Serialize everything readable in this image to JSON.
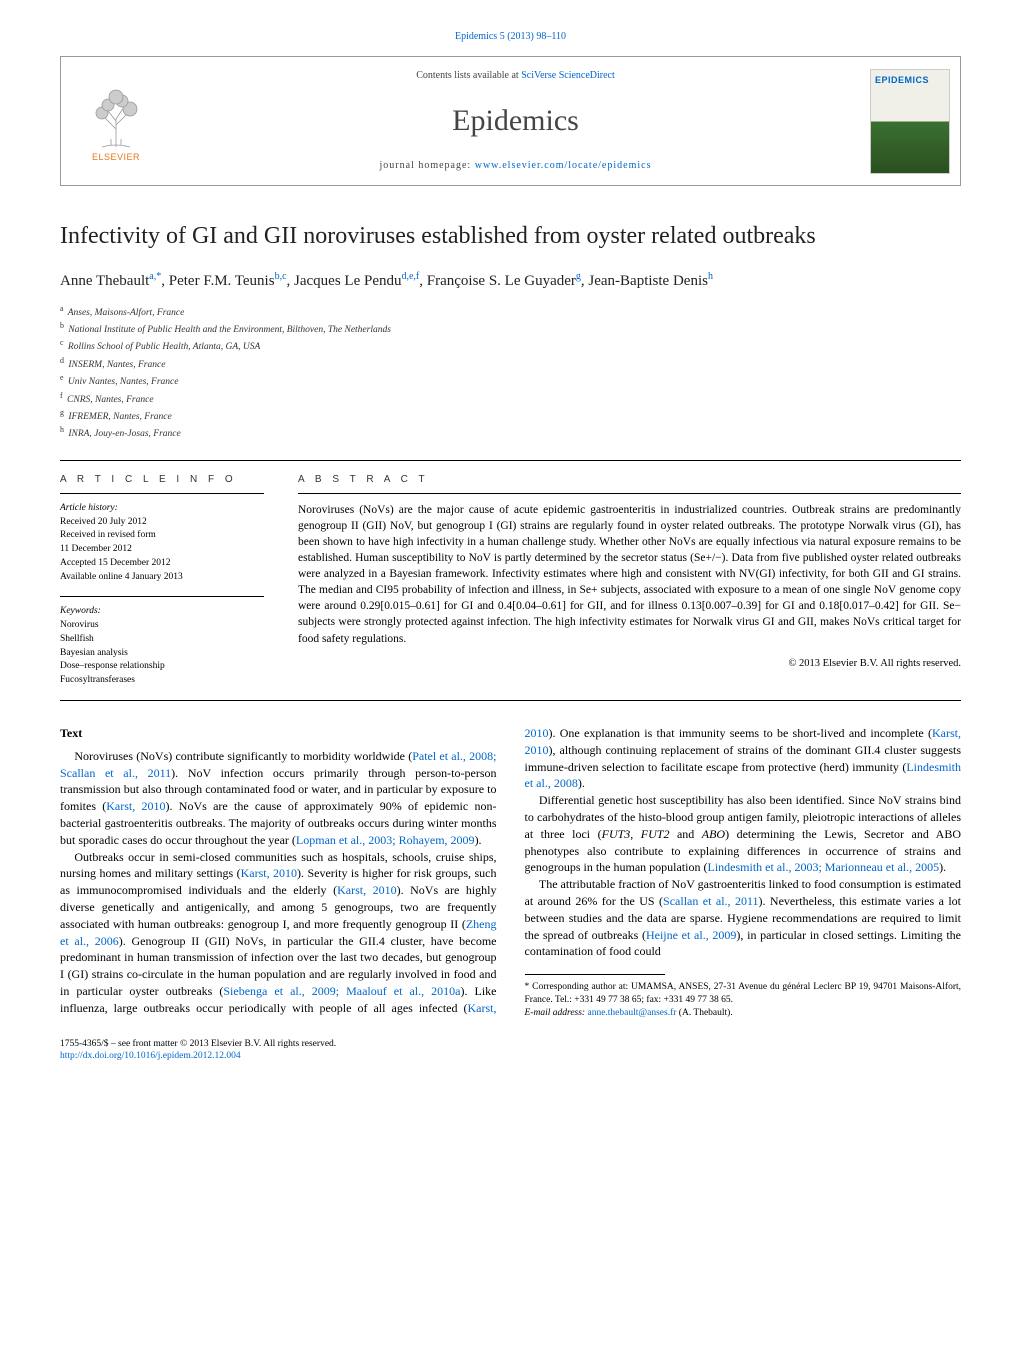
{
  "journal_ref": "Epidemics 5 (2013) 98–110",
  "header": {
    "contents_prefix": "Contents lists available at ",
    "contents_link": "SciVerse ScienceDirect",
    "journal_name": "Epidemics",
    "homepage_prefix": "journal homepage: ",
    "homepage_url": "www.elsevier.com/locate/epidemics",
    "elsevier_label": "ELSEVIER",
    "cover_title": "EPIDEMICS"
  },
  "title": "Infectivity of GI and GII noroviruses established from oyster related outbreaks",
  "authors_html": "Anne Thebault<sup>a,*</sup>, Peter F.M. Teunis<sup>b,c</sup>, Jacques Le Pendu<sup>d,e,f</sup>, Françoise S. Le Guyader<sup>g</sup>, Jean-Baptiste Denis<sup>h</sup>",
  "affiliations": [
    {
      "sup": "a",
      "text": "Anses, Maisons-Alfort, France"
    },
    {
      "sup": "b",
      "text": "National Institute of Public Health and the Environment, Bilthoven, The Netherlands"
    },
    {
      "sup": "c",
      "text": "Rollins School of Public Health, Atlanta, GA, USA"
    },
    {
      "sup": "d",
      "text": "INSERM, Nantes, France"
    },
    {
      "sup": "e",
      "text": "Univ Nantes, Nantes, France"
    },
    {
      "sup": "f",
      "text": "CNRS, Nantes, France"
    },
    {
      "sup": "g",
      "text": "IFREMER, Nantes, France"
    },
    {
      "sup": "h",
      "text": "INRA, Jouy-en-Josas, France"
    }
  ],
  "info": {
    "heading": "a r t i c l e   i n f o",
    "history_label": "Article history:",
    "history": [
      "Received 20 July 2012",
      "Received in revised form",
      "11 December 2012",
      "Accepted 15 December 2012",
      "Available online 4 January 2013"
    ],
    "keywords_label": "Keywords:",
    "keywords": [
      "Norovirus",
      "Shellfish",
      "Bayesian analysis",
      "Dose–response relationship",
      "Fucosyltransferases"
    ]
  },
  "abstract": {
    "heading": "a b s t r a c t",
    "text": "Noroviruses (NoVs) are the major cause of acute epidemic gastroenteritis in industrialized countries. Outbreak strains are predominantly genogroup II (GII) NoV, but genogroup I (GI) strains are regularly found in oyster related outbreaks. The prototype Norwalk virus (GI), has been shown to have high infectivity in a human challenge study. Whether other NoVs are equally infectious via natural exposure remains to be established. Human susceptibility to NoV is partly determined by the secretor status (Se+/−). Data from five published oyster related outbreaks were analyzed in a Bayesian framework. Infectivity estimates where high and consistent with NV(GI) infectivity, for both GII and GI strains. The median and CI95 probability of infection and illness, in Se+ subjects, associated with exposure to a mean of one single NoV genome copy were around 0.29[0.015–0.61] for GI and 0.4[0.04–0.61] for GII, and for illness 0.13[0.007–0.39] for GI and 0.18[0.017–0.42] for GII. Se− subjects were strongly protected against infection. The high infectivity estimates for Norwalk virus GI and GII, makes NoVs critical target for food safety regulations.",
    "copyright": "© 2013 Elsevier B.V. All rights reserved."
  },
  "section_head": "Text",
  "paragraphs": [
    "Noroviruses (NoVs) contribute significantly to morbidity worldwide (<span class=\"cite\">Patel et al., 2008; Scallan et al., 2011</span>). NoV infection occurs primarily through person-to-person transmission but also through contaminated food or water, and in particular by exposure to fomites (<span class=\"cite\">Karst, 2010</span>). NoVs are the cause of approximately 90% of epidemic non-bacterial gastroenteritis outbreaks. The majority of outbreaks occurs during winter months but sporadic cases do occur throughout the year (<span class=\"cite\">Lopman et al., 2003; Rohayem, 2009</span>).",
    "Outbreaks occur in semi-closed communities such as hospitals, schools, cruise ships, nursing homes and military settings (<span class=\"cite\">Karst, 2010</span>). Severity is higher for risk groups, such as immunocompromised individuals and the elderly (<span class=\"cite\">Karst, 2010</span>). NoVs are highly diverse genetically and antigenically, and among 5 genogroups, two are frequently associated with human outbreaks: genogroup I, and more frequently genogroup II (<span class=\"cite\">Zheng et al., 2006</span>). Genogroup II (GII) NoVs, in particular the GII.4 cluster, have become predominant in human transmission of infection over the last two decades, but genogroup I (GI) strains co-circulate in the human population and are regularly involved in food and in particular oyster outbreaks (<span class=\"cite\">Siebenga et al., 2009; Maalouf et al., 2010a</span>). Like influenza, large outbreaks occur periodically with people of all ages infected (<span class=\"cite\">Karst, 2010</span>). One explanation is that immunity seems to be short-lived and incomplete (<span class=\"cite\">Karst, 2010</span>), although continuing replacement of strains of the dominant GII.4 cluster suggests immune-driven selection to facilitate escape from protective (herd) immunity (<span class=\"cite\">Lindesmith et al., 2008</span>).",
    "Differential genetic host susceptibility has also been identified. Since NoV strains bind to carbohydrates of the histo-blood group antigen family, pleiotropic interactions of alleles at three loci (<span class=\"ital\">FUT3</span>, <span class=\"ital\">FUT2</span> and <span class=\"ital\">ABO</span>) determining the Lewis, Secretor and ABO phenotypes also contribute to explaining differences in occurrence of strains and genogroups in the human population (<span class=\"cite\">Lindesmith et al., 2003; Marionneau et al., 2005</span>).",
    "The attributable fraction of NoV gastroenteritis linked to food consumption is estimated at around 26% for the US (<span class=\"cite\">Scallan et al., 2011</span>). Nevertheless, this estimate varies a lot between studies and the data are sparse. Hygiene recommendations are required to limit the spread of outbreaks (<span class=\"cite\">Heijne et al., 2009</span>), in particular in closed settings. Limiting the contamination of food could"
  ],
  "footnote": {
    "corr": "* Corresponding author at: UMAMSA, ANSES, 27-31 Avenue du général Leclerc BP 19, 94701 Maisons-Alfort, France. Tel.: +331 49 77 38 65; fax: +331 49 77 38 65.",
    "email_label": "E-mail address: ",
    "email": "anne.thebault@anses.fr",
    "email_who": " (A. Thebault)."
  },
  "footer": {
    "line1": "1755-4365/$ – see front matter © 2013 Elsevier B.V. All rights reserved.",
    "doi": "http://dx.doi.org/10.1016/j.epidem.2012.12.004"
  },
  "colors": {
    "link": "#0066cc",
    "elsevier_orange": "#e67817",
    "text": "#000000",
    "rule": "#000000"
  }
}
